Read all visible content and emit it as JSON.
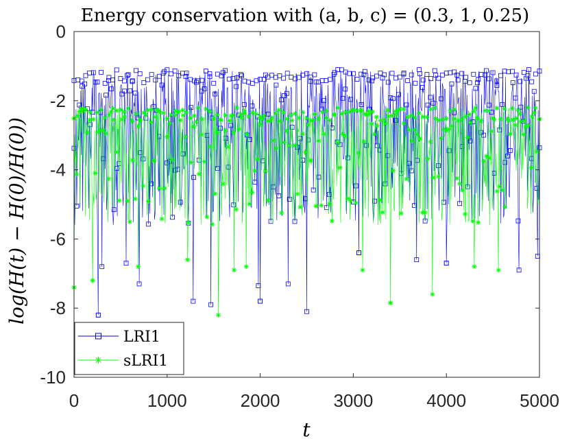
{
  "chart_data": {
    "type": "line",
    "title": "Energy conservation with (a, b, c) = (0.3, 1, 0.25)",
    "xlabel": "t",
    "ylabel": "log(H(t) − H(0)/H(0))",
    "xlim": [
      0,
      5000
    ],
    "ylim": [
      -10,
      0
    ],
    "xticks": [
      0,
      1000,
      2000,
      3000,
      4000,
      5000
    ],
    "yticks": [
      0,
      -2,
      -4,
      -6,
      -8,
      -10
    ],
    "xtick_labels": [
      "0",
      "1000",
      "2000",
      "3000",
      "4000",
      "5000"
    ],
    "ytick_labels": [
      "0",
      "-2",
      "-4",
      "-6",
      "-8",
      "-10"
    ],
    "grid": false,
    "legend_position": "bottom-left",
    "series": [
      {
        "name": "LRI1",
        "color": "#0000ff",
        "marker": "square",
        "band_upper": -1.1,
        "band_upper_dense_to": -2.4,
        "typical_low": -5.6,
        "spike_minima": [
          {
            "t": 260,
            "v": -8.2
          },
          {
            "t": 300,
            "v": -6.8
          },
          {
            "t": 560,
            "v": -6.7
          },
          {
            "t": 700,
            "v": -7.3
          },
          {
            "t": 1280,
            "v": -7.8
          },
          {
            "t": 1470,
            "v": -7.9
          },
          {
            "t": 1980,
            "v": -7.35
          },
          {
            "t": 2000,
            "v": -7.8
          },
          {
            "t": 2300,
            "v": -7.3
          },
          {
            "t": 2500,
            "v": -8.1
          },
          {
            "t": 3060,
            "v": -6.4
          },
          {
            "t": 3680,
            "v": -6.6
          },
          {
            "t": 4000,
            "v": -6.7
          },
          {
            "t": 4780,
            "v": -6.9
          },
          {
            "t": 4980,
            "v": -6.5
          }
        ]
      },
      {
        "name": "sLRI1",
        "color": "#00ff00",
        "marker": "asterisk",
        "band_upper": -2.2,
        "band_upper_dense_to": -3.0,
        "typical_low": -5.6,
        "spike_minima": [
          {
            "t": 0,
            "v": -7.4
          },
          {
            "t": 200,
            "v": -7.2
          },
          {
            "t": 690,
            "v": -6.8
          },
          {
            "t": 1220,
            "v": -6.6
          },
          {
            "t": 1550,
            "v": -8.2
          },
          {
            "t": 1720,
            "v": -6.9
          },
          {
            "t": 1850,
            "v": -6.8
          },
          {
            "t": 3100,
            "v": -6.9
          },
          {
            "t": 3400,
            "v": -7.85
          },
          {
            "t": 3850,
            "v": -7.6
          },
          {
            "t": 4300,
            "v": -6.8
          },
          {
            "t": 4560,
            "v": -6.9
          }
        ]
      }
    ]
  }
}
